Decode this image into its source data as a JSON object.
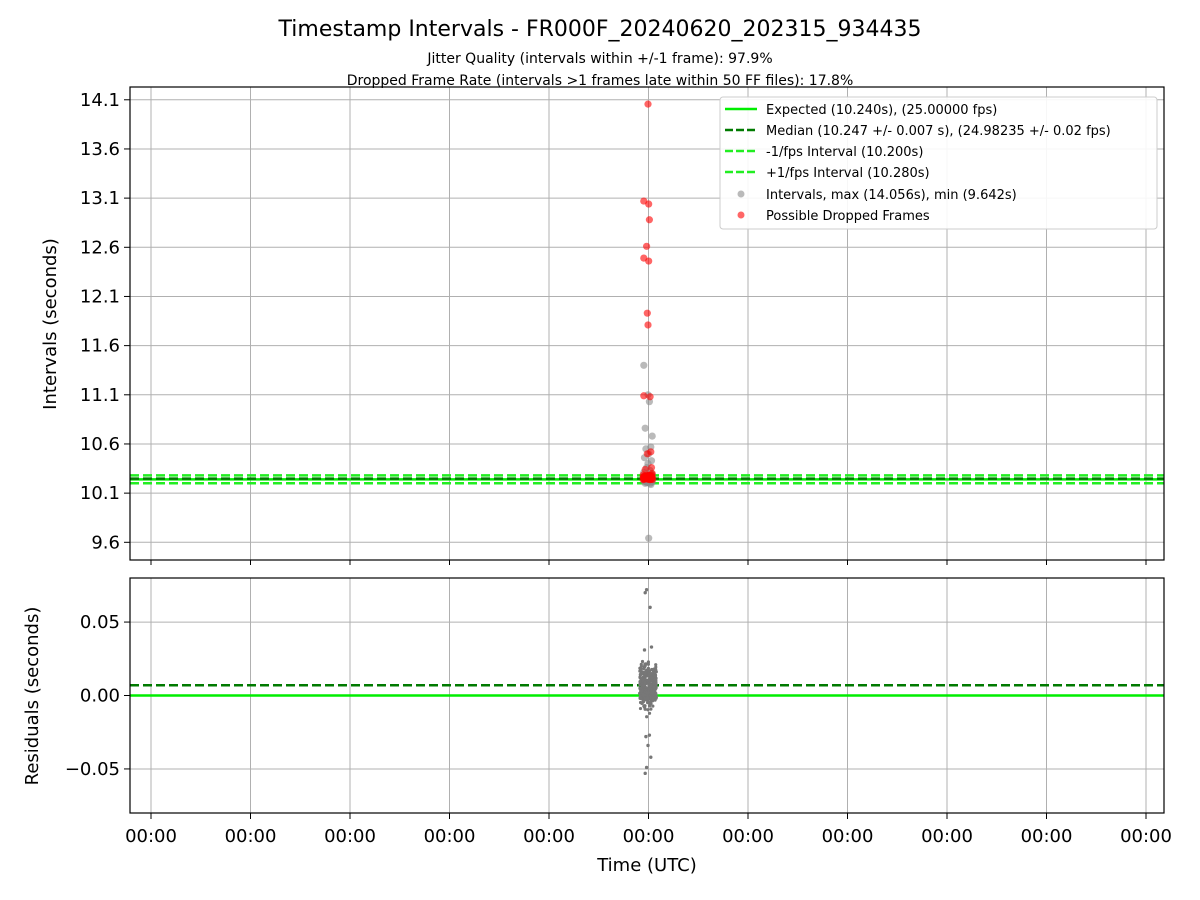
{
  "chart_data": [
    {
      "type": "scatter",
      "title": "Timestamp Intervals - FR000F_20240620_202315_934435",
      "subtitle_lines": [
        "Jitter Quality (intervals within +/-1 frame): 97.9%",
        "Dropped Frame Rate (intervals >1 frames late within 50 FF files): 17.8%"
      ],
      "ylabel": "Intervals (seconds)",
      "ylim": [
        9.42,
        14.23
      ],
      "yticks": [
        "9.6",
        "10.1",
        "10.6",
        "11.1",
        "11.6",
        "12.1",
        "12.6",
        "13.1",
        "13.6",
        "14.1"
      ],
      "grid": true,
      "legend_position": "top-right",
      "reference_lines": [
        {
          "name": "Expected (10.240s), (25.00000 fps)",
          "y": 10.24,
          "style": "solid",
          "color": "#00ee00"
        },
        {
          "name": "Median (10.247 +/- 0.007 s), (24.98235 +/- 0.02 fps)",
          "y": 10.247,
          "style": "dashed",
          "color": "#007a00"
        },
        {
          "name": "-1/fps Interval (10.200s)",
          "y": 10.2,
          "style": "dashed",
          "color": "#22ee22"
        },
        {
          "name": "+1/fps Interval (10.280s)",
          "y": 10.28,
          "style": "dashed",
          "color": "#22ee22"
        }
      ],
      "series": [
        {
          "name": "Intervals, max (14.056s), min (9.642s)",
          "color": "#8c8c8c",
          "x_offsets": [
            -0.3,
            0,
            0.1,
            -0.2,
            0.3,
            0.2,
            -0.15,
            0.05,
            -0.25,
            0.25,
            0,
            -0.1,
            0.15,
            -0.3,
            0.3,
            0.1,
            -0.05,
            0.2,
            -0.2,
            0.05
          ],
          "y": [
            11.4,
            11.1,
            11.03,
            10.76,
            10.68,
            10.57,
            10.55,
            10.5,
            10.46,
            10.43,
            10.4,
            10.36,
            10.33,
            10.31,
            10.29,
            10.27,
            10.25,
            10.22,
            10.2,
            9.642
          ]
        },
        {
          "name": "Possible Dropped Frames",
          "color": "#ff0000",
          "x_offsets": [
            0,
            -0.3,
            0.05,
            0.1,
            -0.1,
            -0.3,
            0.05,
            -0.05,
            0,
            -0.3,
            0.15,
            0.2,
            -0.05,
            0.25,
            -0.2,
            0.3,
            0.1,
            -0.25,
            0.2,
            0
          ],
          "y": [
            14.056,
            13.07,
            13.04,
            12.88,
            12.61,
            12.49,
            12.46,
            11.93,
            11.81,
            11.09,
            11.08,
            10.52,
            10.5,
            10.36,
            10.34,
            10.3,
            10.28,
            10.26,
            10.25,
            10.24
          ]
        }
      ]
    },
    {
      "type": "scatter",
      "xlabel": "Time (UTC)",
      "ylabel": "Residuals (seconds)",
      "ylim": [
        -0.08,
        0.08
      ],
      "yticks": [
        "−0.05",
        "0.00",
        "0.05"
      ],
      "xticks": [
        "00:00",
        "00:00",
        "00:00",
        "00:00",
        "00:00",
        "00:00",
        "00:00",
        "00:00",
        "00:00",
        "00:00",
        "00:00"
      ],
      "grid": true,
      "reference_lines": [
        {
          "y": 0.0,
          "style": "solid",
          "color": "#00ee00"
        },
        {
          "y": 0.007,
          "style": "dashed",
          "color": "#007a00"
        }
      ],
      "series": [
        {
          "color": "#777777",
          "outliers": [
            {
              "x_offset": -0.1,
              "y": 0.072
            },
            {
              "x_offset": -0.2,
              "y": 0.07
            },
            {
              "x_offset": 0.15,
              "y": 0.06
            },
            {
              "x_offset": 0.2,
              "y": -0.042
            },
            {
              "x_offset": -0.1,
              "y": -0.049
            },
            {
              "x_offset": -0.2,
              "y": -0.053
            },
            {
              "x_offset": 0.0,
              "y": -0.034
            },
            {
              "x_offset": -0.15,
              "y": -0.028
            },
            {
              "x_offset": 0.1,
              "y": -0.027
            },
            {
              "x_offset": 0.25,
              "y": 0.033
            },
            {
              "x_offset": -0.25,
              "y": 0.031
            }
          ],
          "cluster": {
            "center_y": 0.006,
            "spread": 0.012,
            "count": 360
          }
        }
      ]
    }
  ]
}
